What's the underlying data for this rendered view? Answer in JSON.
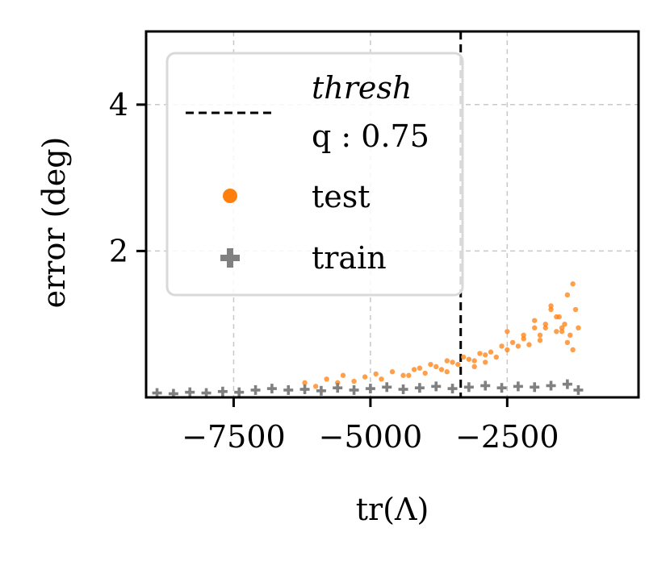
{
  "chart_data": {
    "type": "scatter",
    "xlabel": "tr(Λ)",
    "ylabel": "error (deg)",
    "xlim": [
      -9100,
      -100
    ],
    "ylim": [
      0,
      5.0
    ],
    "xticks": [
      -7500,
      -5000,
      -2500
    ],
    "xtick_labels": [
      "−7500",
      "−5000",
      "−2500"
    ],
    "yticks": [
      2,
      4
    ],
    "ytick_labels": [
      "2",
      "4"
    ],
    "grid": true,
    "legend_placement": "top-left",
    "threshold": {
      "x": -3350,
      "label_line1": "thresh",
      "label_line2": "q : 0.75",
      "color": "#000000"
    },
    "series": [
      {
        "name": "test",
        "marker": "dot",
        "color": "#ff7f0e",
        "x": [
          -6200,
          -6000,
          -5800,
          -5600,
          -5500,
          -5300,
          -5100,
          -4900,
          -4800,
          -4600,
          -4400,
          -4200,
          -4100,
          -4000,
          -3900,
          -3800,
          -3700,
          -3600,
          -3500,
          -3400,
          -3300,
          -3200,
          -3100,
          -3000,
          -2900,
          -2800,
          -2700,
          -2600,
          -2500,
          -2400,
          -2300,
          -2200,
          -2100,
          -2000,
          -1900,
          -1800,
          -1700,
          -1600,
          -1550,
          -1500,
          -1450,
          -1400,
          -1350,
          -1300,
          -1250,
          -1200,
          -2500,
          -2200,
          -1900,
          -1800,
          -1600,
          -1500,
          -1400,
          -1300,
          -2900,
          -3100,
          -3600,
          -4300,
          -2000,
          -1700
        ],
        "y": [
          0.2,
          0.15,
          0.25,
          0.2,
          0.3,
          0.22,
          0.28,
          0.32,
          0.25,
          0.35,
          0.3,
          0.38,
          0.4,
          0.33,
          0.45,
          0.42,
          0.38,
          0.5,
          0.48,
          0.45,
          0.55,
          0.52,
          0.5,
          0.6,
          0.58,
          0.62,
          0.55,
          0.7,
          0.65,
          0.75,
          0.7,
          0.8,
          0.72,
          0.95,
          0.85,
          1.0,
          1.2,
          0.9,
          1.1,
          0.95,
          1.0,
          1.4,
          0.85,
          1.55,
          1.2,
          0.95,
          0.9,
          0.85,
          0.78,
          0.95,
          1.1,
          0.9,
          0.75,
          0.65,
          0.48,
          0.42,
          0.35,
          0.3,
          1.05,
          1.25
        ]
      },
      {
        "name": "train",
        "marker": "plus",
        "color": "#808080",
        "x": [
          -8900,
          -8600,
          -8300,
          -8000,
          -7700,
          -7400,
          -7100,
          -6800,
          -6500,
          -6200,
          -5900,
          -5600,
          -5300,
          -5000,
          -4700,
          -4400,
          -4100,
          -3800,
          -3500,
          -3200,
          -2900,
          -2600,
          -2300,
          -2000,
          -1700,
          -1400,
          -1200
        ],
        "y": [
          0.06,
          0.05,
          0.07,
          0.06,
          0.08,
          0.07,
          0.1,
          0.12,
          0.1,
          0.11,
          0.09,
          0.13,
          0.1,
          0.12,
          0.14,
          0.11,
          0.13,
          0.15,
          0.12,
          0.14,
          0.16,
          0.13,
          0.15,
          0.14,
          0.16,
          0.18,
          0.1
        ]
      }
    ]
  }
}
